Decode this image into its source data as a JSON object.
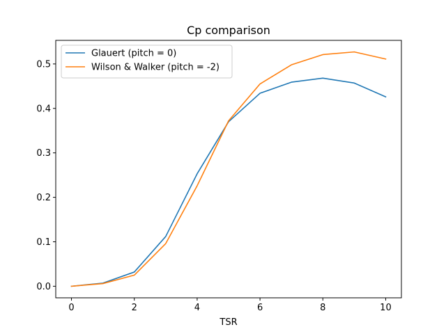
{
  "chart_data": {
    "type": "line",
    "title": "Cp comparison",
    "xlabel": "TSR",
    "ylabel": "",
    "xlim": [
      -0.5,
      10.5
    ],
    "ylim": [
      -0.026,
      0.553
    ],
    "xticks": [
      0,
      2,
      4,
      6,
      8,
      10
    ],
    "yticks": [
      0.0,
      0.1,
      0.2,
      0.3,
      0.4,
      0.5
    ],
    "xtick_labels": [
      "0",
      "2",
      "4",
      "6",
      "8",
      "10"
    ],
    "ytick_labels": [
      "0.0",
      "0.1",
      "0.2",
      "0.3",
      "0.4",
      "0.5"
    ],
    "grid": false,
    "legend_position": "top-left",
    "x": [
      0,
      1,
      2,
      3,
      4,
      5,
      6,
      7,
      8,
      9,
      10
    ],
    "series": [
      {
        "name": "Glauert (pitch = 0)",
        "color": "#1f77b4",
        "values": [
          0.0,
          0.007,
          0.032,
          0.112,
          0.253,
          0.37,
          0.434,
          0.459,
          0.468,
          0.457,
          0.426
        ]
      },
      {
        "name": "Wilson & Walker (pitch = -2)",
        "color": "#ff7f0e",
        "values": [
          0.0,
          0.006,
          0.025,
          0.096,
          0.226,
          0.372,
          0.455,
          0.498,
          0.521,
          0.527,
          0.511
        ]
      }
    ]
  }
}
